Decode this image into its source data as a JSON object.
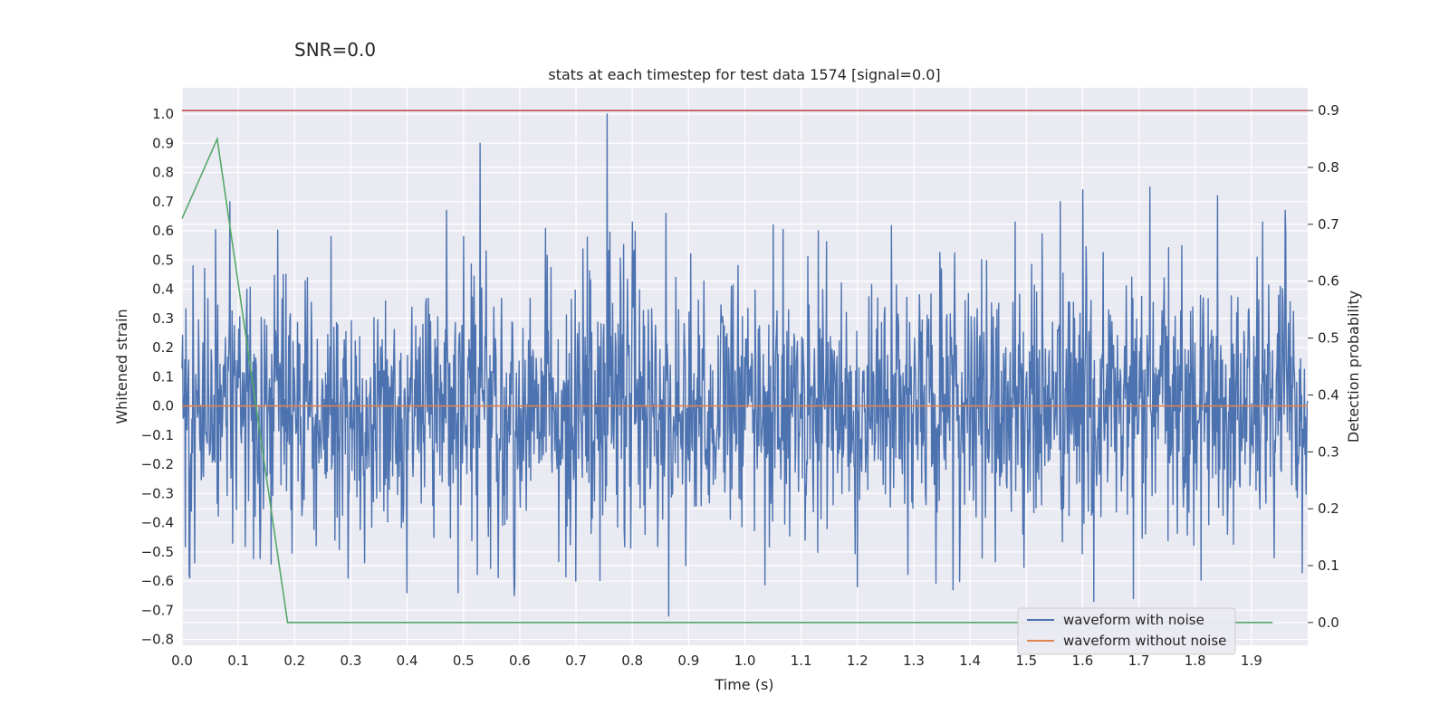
{
  "chart_data": {
    "type": "line",
    "suptitle": "SNR=0.0",
    "title": "stats at each timestep for test data 1574 [signal=0.0]",
    "xlabel": "Time (s)",
    "ylabel_left": "Whitened strain",
    "ylabel_right": "Detection probability",
    "xlim": [
      0.0,
      2.0
    ],
    "ylim_left": [
      -0.82,
      1.09
    ],
    "ylim_right": [
      -0.04,
      0.94
    ],
    "x_ticks": [
      "0.0",
      "0.1",
      "0.2",
      "0.3",
      "0.4",
      "0.5",
      "0.6",
      "0.7",
      "0.8",
      "0.9",
      "1.0",
      "1.1",
      "1.2",
      "1.3",
      "1.4",
      "1.5",
      "1.6",
      "1.7",
      "1.8",
      "1.9"
    ],
    "y_left_ticks": [
      "1.0",
      "0.9",
      "0.8",
      "0.7",
      "0.6",
      "0.5",
      "0.4",
      "0.3",
      "0.2",
      "0.1",
      "0.0",
      "−0.1",
      "−0.2",
      "−0.3",
      "−0.4",
      "−0.5",
      "−0.6",
      "−0.7",
      "−0.8"
    ],
    "y_right_ticks": [
      "0.9",
      "0.8",
      "0.7",
      "0.6",
      "0.5",
      "0.4",
      "0.3",
      "0.2",
      "0.1",
      "0.0"
    ],
    "grid": true,
    "legend_position": "lower-right",
    "series": [
      {
        "name": "waveform with noise",
        "axis": "left",
        "color": "#4c72b0",
        "kind": "noise",
        "n_samples": 2048,
        "approx_std": 0.22,
        "peaks": [
          {
            "x": 0.02,
            "y": 0.48
          },
          {
            "x": 0.085,
            "y": 0.7
          },
          {
            "x": 0.09,
            "y": -0.47
          },
          {
            "x": 0.115,
            "y": 0.4
          },
          {
            "x": 0.18,
            "y": 0.45
          },
          {
            "x": 0.265,
            "y": 0.58
          },
          {
            "x": 0.295,
            "y": -0.59
          },
          {
            "x": 0.4,
            "y": -0.64
          },
          {
            "x": 0.47,
            "y": 0.67
          },
          {
            "x": 0.49,
            "y": -0.64
          },
          {
            "x": 0.5,
            "y": 0.58
          },
          {
            "x": 0.53,
            "y": 0.9
          },
          {
            "x": 0.59,
            "y": -0.65
          },
          {
            "x": 0.7,
            "y": -0.6
          },
          {
            "x": 0.755,
            "y": 1.0
          },
          {
            "x": 0.8,
            "y": 0.63
          },
          {
            "x": 0.86,
            "y": 0.66
          },
          {
            "x": 0.865,
            "y": -0.72
          },
          {
            "x": 1.05,
            "y": 0.62
          },
          {
            "x": 1.13,
            "y": 0.6
          },
          {
            "x": 1.2,
            "y": -0.62
          },
          {
            "x": 1.37,
            "y": -0.63
          },
          {
            "x": 1.48,
            "y": 0.63
          },
          {
            "x": 1.56,
            "y": 0.7
          },
          {
            "x": 1.6,
            "y": 0.74
          },
          {
            "x": 1.62,
            "y": -0.67
          },
          {
            "x": 1.69,
            "y": -0.66
          },
          {
            "x": 1.72,
            "y": 0.75
          },
          {
            "x": 1.84,
            "y": 0.72
          },
          {
            "x": 1.92,
            "y": 0.63
          },
          {
            "x": 1.94,
            "y": -0.52
          },
          {
            "x": 1.96,
            "y": 0.67
          }
        ]
      },
      {
        "name": "waveform without noise",
        "axis": "left",
        "color": "#dd8452",
        "x": [
          0.0,
          2.0
        ],
        "y": [
          0.0,
          0.0
        ]
      },
      {
        "axis": "right",
        "color": "#55a868",
        "x": [
          0.0,
          0.0625,
          0.1875,
          1.9375
        ],
        "y": [
          0.71,
          0.85,
          0.0,
          0.0
        ]
      },
      {
        "axis": "right",
        "color": "#c44e52",
        "x": [
          0.0,
          2.0
        ],
        "y": [
          0.9,
          0.9
        ]
      }
    ]
  }
}
